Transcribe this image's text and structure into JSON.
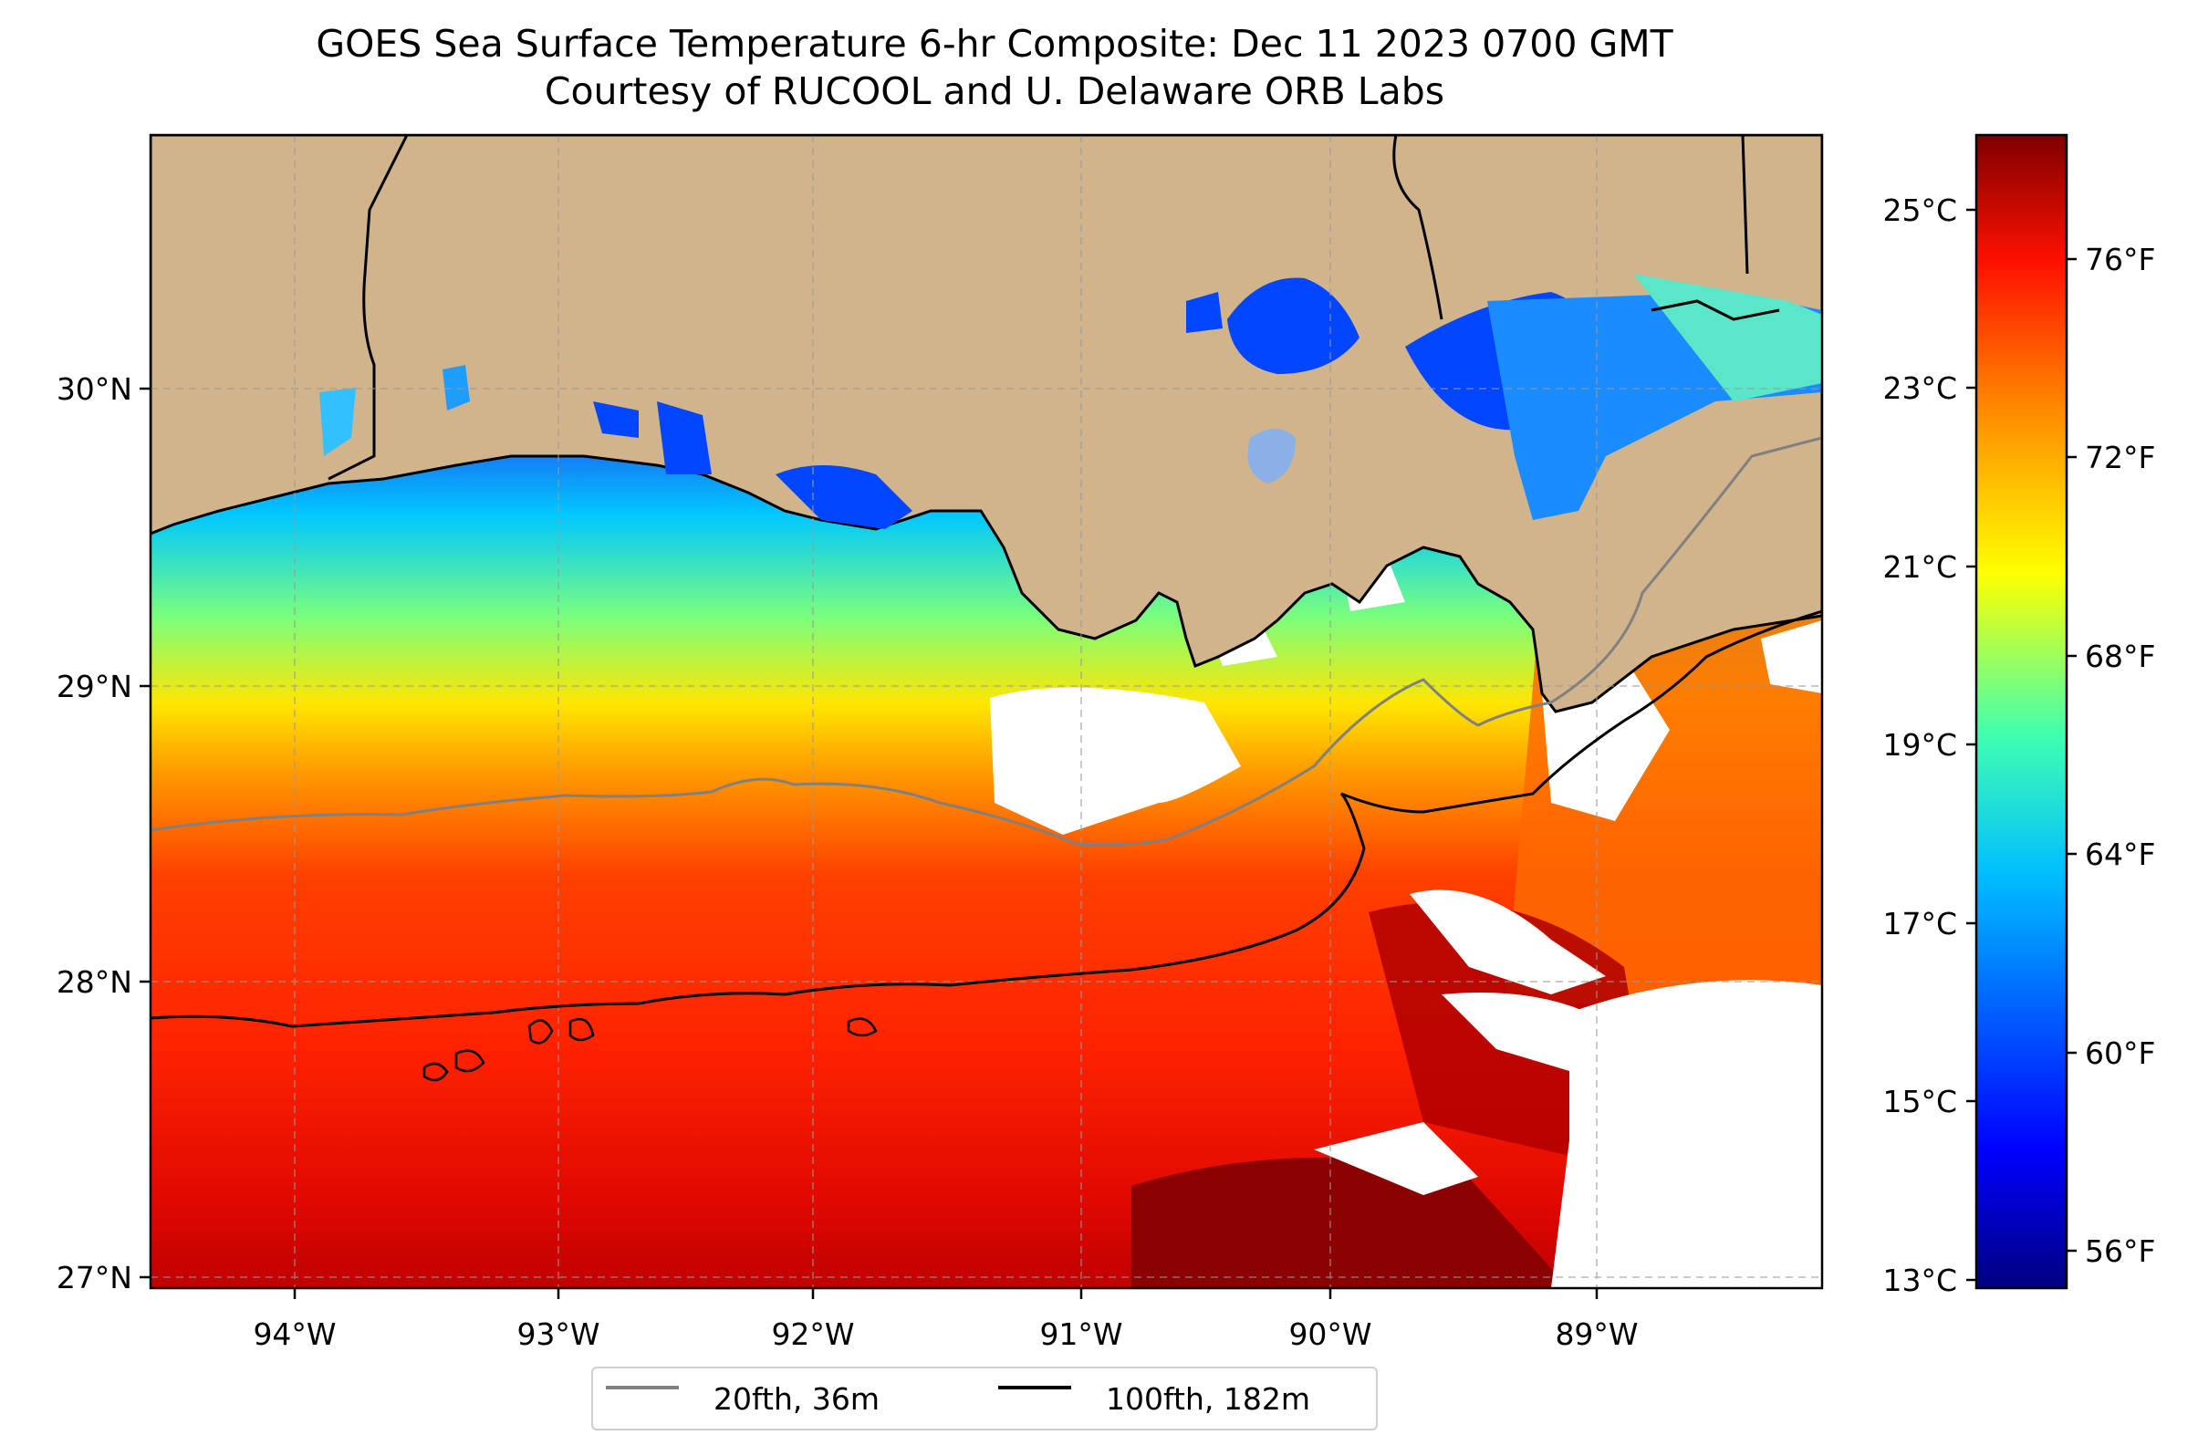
{
  "title": {
    "line1": "GOES Sea Surface Temperature 6-hr Composite: Dec 11 2023 0700 GMT",
    "line2": "Courtesy of RUCOOL and U. Delaware ORB Labs"
  },
  "map": {
    "lon_range": [
      -94.6,
      -88.2
    ],
    "lat_range": [
      26.95,
      30.85
    ],
    "lon_ticks": [
      {
        "value": -94,
        "label": "94°W"
      },
      {
        "value": -93,
        "label": "93°W"
      },
      {
        "value": -92,
        "label": "92°W"
      },
      {
        "value": -91,
        "label": "91°W"
      },
      {
        "value": -90,
        "label": "90°W"
      },
      {
        "value": -89,
        "label": "89°W"
      }
    ],
    "lat_ticks": [
      {
        "value": 30,
        "label": "30°N"
      },
      {
        "value": 29,
        "label": "29°N"
      },
      {
        "value": 28,
        "label": "28°N"
      },
      {
        "value": 27,
        "label": "27°N"
      }
    ],
    "gridlines": "dashed",
    "colors": {
      "land": "#d2b48c",
      "water_cold": "#1e5bf0",
      "water_warm": "#ff2a00",
      "water_hot": "#8b0000",
      "no_data": "#ffffff",
      "isobath_20fth": "#808080",
      "isobath_100fth": "#000000"
    }
  },
  "colorbar": {
    "colormap": "jet",
    "celsius_ticks": [
      "25°C",
      "23°C",
      "21°C",
      "19°C",
      "17°C",
      "15°C",
      "13°C"
    ],
    "fahrenheit_ticks": [
      "76°F",
      "72°F",
      "68°F",
      "64°F",
      "60°F",
      "56°F"
    ]
  },
  "legend": {
    "position": "bottom-center",
    "items": [
      {
        "label": "20fth, 36m",
        "color": "#808080"
      },
      {
        "label": "100fth, 182m",
        "color": "#000000"
      }
    ]
  }
}
